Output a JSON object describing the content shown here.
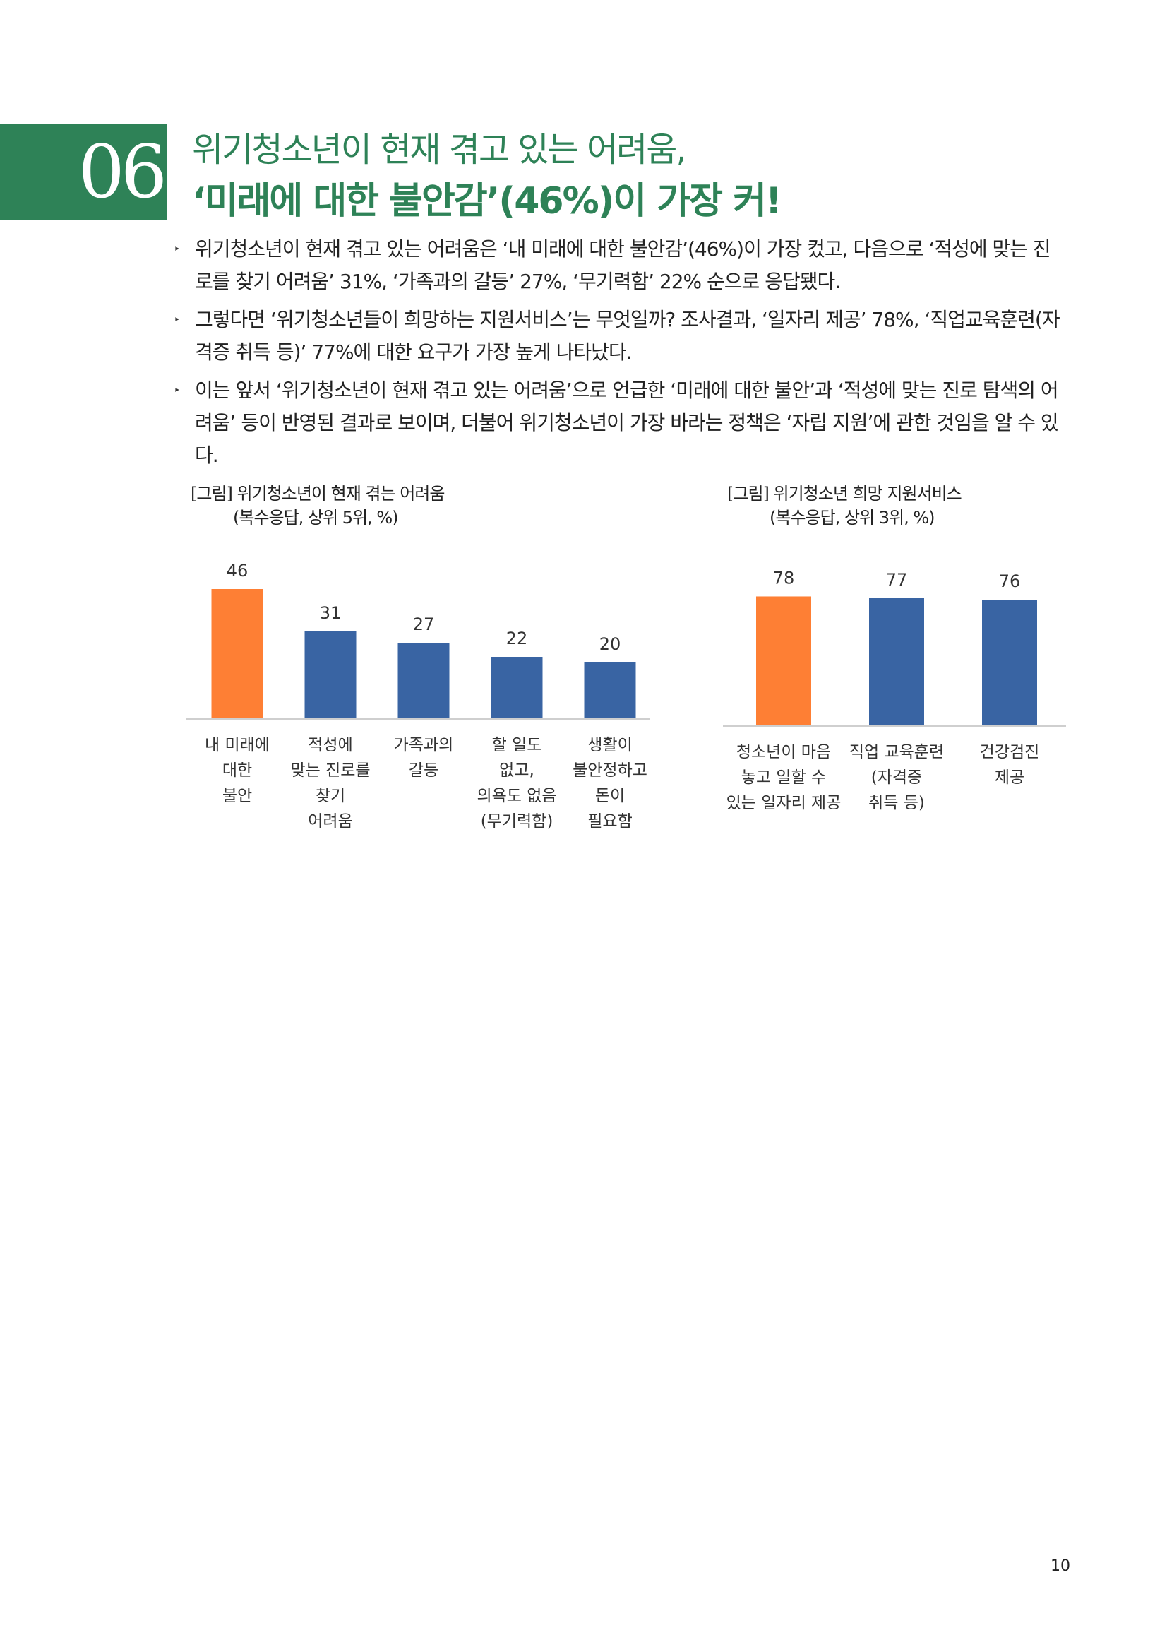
{
  "section": {
    "number": "06",
    "title_line1": "위기청소년이 현재 겪고 있는 어려움,",
    "title_line2": "‘미래에 대한 불안감’(46%)이 가장 커!"
  },
  "bullets": [
    {
      "marker": "‣",
      "text": "위기청소년이 현재 겪고 있는 어려움은 ‘내 미래에 대한 불안감’(46%)이 가장 컸고, 다음으로 ‘적성에 맞는 진로를 찾기 어려움’ 31%, ‘가족과의 갈등’ 27%, ‘무기력함’ 22% 순으로 응답됐다."
    },
    {
      "marker": "‣",
      "text": "그렇다면 ‘위기청소년들이 희망하는 지원서비스’는 무엇일까? 조사결과, ‘일자리 제공’ 78%, ‘직업교육훈련(자격증 취득 등)’ 77%에 대한 요구가 가장 높게 나타났다."
    },
    {
      "marker": "‣",
      "text": "이는 앞서 ‘위기청소년이 현재 겪고 있는 어려움’으로 언급한 ‘미래에 대한 불안’과 ‘적성에 맞는 진로 탐색의 어려움’ 등이 반영된 결과로 보이며, 더불어 위기청소년이 가장 바라는 정책은 ‘자립 지원’에 관한 것임을 알 수 있다."
    }
  ],
  "figures": {
    "left_title": "[그림] 위기청소년이 현재 겪는 어려움",
    "left_subtitle": "(복수응답, 상위 5위, %)",
    "right_title": "[그림] 위기청소년 희망 지원서비스",
    "right_subtitle": "(복수응답, 상위 3위, %)"
  },
  "colors": {
    "accent": "#2e8257",
    "highlight_bar": "#fe7f34",
    "bar": "#3964a3"
  },
  "chart_data": [
    {
      "type": "bar",
      "title": "[그림] 위기청소년이 현재 겪는 어려움",
      "subtitle": "(복수응답, 상위 5위, %)",
      "categories": [
        "내 미래에 대한 불안",
        "적성에 맞는 진로를 찾기 어려움",
        "가족과의 갈등",
        "할 일도 없고, 의욕도 없음 (무기력함)",
        "생활이 불안정하고 돈이 필요함"
      ],
      "category_lines": [
        [
          "내 미래에",
          "대한",
          "불안"
        ],
        [
          "적성에",
          "맞는 진로를",
          "찾기",
          "어려움"
        ],
        [
          "가족과의",
          "갈등"
        ],
        [
          "할 일도",
          "없고,",
          "의욕도 없음",
          "(무기력함)"
        ],
        [
          "생활이",
          "불안정하고",
          "돈이",
          "필요함"
        ]
      ],
      "values": [
        46,
        31,
        27,
        22,
        20
      ],
      "highlight_index": 0,
      "ylim": [
        0,
        50
      ],
      "grid": false,
      "data_labels": true
    },
    {
      "type": "bar",
      "title": "[그림] 위기청소년 희망 지원서비스",
      "subtitle": "(복수응답, 상위 3위, %)",
      "categories": [
        "청소년이 마음 놓고 일할 수 있는 일자리 제공",
        "직업 교육훈련 (자격증 취득 등)",
        "건강검진 제공"
      ],
      "category_lines": [
        [
          "청소년이 마음",
          "놓고 일할 수",
          "있는 일자리 제공"
        ],
        [
          "직업 교육훈련",
          "(자격증",
          "취득 등)"
        ],
        [
          "건강검진",
          "제공"
        ]
      ],
      "values": [
        78,
        77,
        76
      ],
      "highlight_index": 0,
      "ylim": [
        0,
        85
      ],
      "grid": false,
      "data_labels": true
    }
  ],
  "page_number": "10"
}
